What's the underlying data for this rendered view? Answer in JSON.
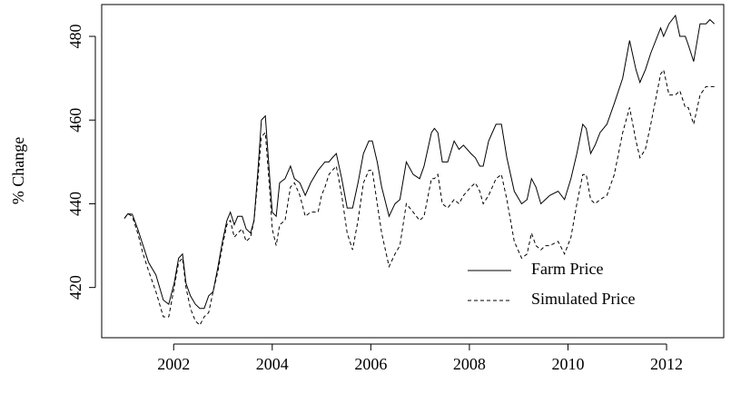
{
  "chart_data": {
    "type": "line",
    "ylabel": "% Change",
    "x": [
      2001.0,
      2001.07,
      2001.16,
      2001.27,
      2001.38,
      2001.49,
      2001.64,
      2001.79,
      2001.9,
      2002.01,
      2002.1,
      2002.18,
      2002.25,
      2002.34,
      2002.44,
      2002.53,
      2002.62,
      2002.71,
      2002.8,
      2002.9,
      2002.99,
      2003.08,
      2003.15,
      2003.23,
      2003.3,
      2003.39,
      2003.47,
      2003.56,
      2003.63,
      2003.71,
      2003.78,
      2003.86,
      2003.95,
      2004.0,
      2004.08,
      2004.15,
      2004.26,
      2004.37,
      2004.45,
      2004.56,
      2004.67,
      2004.78,
      2004.93,
      2005.0,
      2005.07,
      2005.15,
      2005.22,
      2005.3,
      2005.41,
      2005.52,
      2005.63,
      2005.74,
      2005.85,
      2005.96,
      2006.03,
      2006.13,
      2006.22,
      2006.37,
      2006.49,
      2006.59,
      2006.72,
      2006.86,
      2006.99,
      2007.08,
      2007.23,
      2007.29,
      2007.36,
      2007.45,
      2007.56,
      2007.69,
      2007.79,
      2007.88,
      2008.03,
      2008.12,
      2008.21,
      2008.28,
      2008.39,
      2008.54,
      2008.65,
      2008.76,
      2008.91,
      2009.06,
      2009.17,
      2009.26,
      2009.35,
      2009.45,
      2009.54,
      2009.63,
      2009.8,
      2009.93,
      2010.06,
      2010.18,
      2010.3,
      2010.37,
      2010.46,
      2010.55,
      2010.65,
      2010.79,
      2010.94,
      2011.11,
      2011.25,
      2011.38,
      2011.46,
      2011.57,
      2011.68,
      2011.88,
      2011.94,
      2012.05,
      2012.18,
      2012.27,
      2012.38,
      2012.44,
      2012.55,
      2012.68,
      2012.8,
      2012.88,
      2012.97
    ],
    "series": [
      {
        "name": "Farm Price",
        "color": "#000000",
        "linestyle": "solid",
        "values": [
          436.5,
          437.6,
          437.5,
          434,
          430,
          426,
          423,
          417,
          416,
          421,
          427,
          428,
          421,
          418,
          416,
          415,
          415,
          418,
          419,
          425,
          431,
          436,
          438,
          435,
          437,
          437,
          434,
          433,
          436,
          448,
          460,
          461,
          446,
          438,
          437,
          445,
          446,
          449,
          446,
          445,
          442,
          445,
          448,
          449,
          450,
          450,
          451,
          452,
          446,
          439,
          439,
          445,
          452,
          455,
          455,
          450,
          444,
          437,
          440,
          441,
          450,
          447,
          446,
          449,
          457,
          458,
          457,
          450,
          450,
          455,
          453,
          454,
          452,
          451,
          449,
          449,
          455,
          459,
          459,
          451,
          443,
          440,
          441,
          446,
          444,
          440,
          441,
          442,
          443,
          441,
          446,
          452,
          459,
          458,
          452,
          454,
          457,
          459,
          464,
          470,
          479,
          472,
          469,
          472,
          476,
          482,
          480,
          483,
          485,
          480,
          480,
          478,
          474,
          483,
          483,
          484,
          483
        ]
      },
      {
        "name": "Simulated Price",
        "color": "#000000",
        "linestyle": "dashed",
        "values": [
          436.5,
          437.6,
          437,
          433,
          428,
          424,
          419,
          413,
          413,
          420,
          426,
          427,
          420,
          415,
          412,
          411,
          413,
          414,
          419,
          424,
          430,
          435,
          436,
          432,
          433,
          434,
          431,
          432,
          436,
          446,
          456,
          457,
          443,
          434,
          430,
          435,
          436,
          444,
          445,
          442,
          437,
          438,
          438,
          442,
          444,
          447,
          448,
          449,
          442,
          433,
          429,
          436,
          445,
          448,
          448,
          440,
          433,
          425,
          428,
          430,
          440,
          438,
          436,
          437,
          446,
          446,
          447,
          440,
          439,
          441,
          440,
          442,
          444,
          445,
          443,
          440,
          442,
          446,
          447,
          441,
          431,
          427,
          428,
          433,
          430,
          429,
          430,
          430,
          431,
          428,
          432,
          440,
          447,
          447,
          441,
          440,
          441,
          442,
          447,
          457,
          463,
          455,
          451,
          453,
          459,
          471,
          472,
          466,
          466,
          467,
          463,
          463,
          459,
          466,
          468,
          468,
          468
        ]
      }
    ],
    "xlim": [
      2000.54,
      2013.16
    ],
    "ylim": [
      408,
      487.6
    ],
    "xticks": [
      2002,
      2004,
      2006,
      2008,
      2010,
      2012
    ],
    "yticks": [
      420,
      440,
      460,
      480
    ],
    "legend": "lower right",
    "grid": false
  }
}
